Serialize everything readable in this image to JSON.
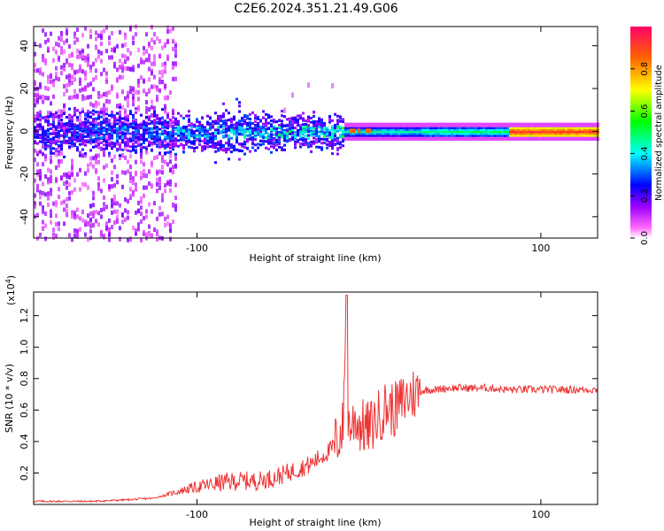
{
  "title": "C2E6.2024.351.21.49.G06",
  "chart_data": [
    {
      "type": "heatmap",
      "title": "",
      "xlabel": "Height of straight line (km)",
      "ylabel": "Frequency (Hz)",
      "xlim": [
        -195,
        133
      ],
      "ylim": [
        -50,
        49
      ],
      "xticks": [
        -100,
        100
      ],
      "yticks": [
        -40,
        -20,
        0,
        20,
        40
      ],
      "colorbar": {
        "label": "Normalized spectral amplitude",
        "ticks": [
          0.0,
          0.2,
          0.4,
          0.6,
          0.8
        ],
        "range": [
          0,
          1
        ],
        "colormap": [
          "#ffffff",
          "#ff00ff",
          "#8a00ff",
          "#0000ff",
          "#00ffff",
          "#00ff00",
          "#ffff00",
          "#ff8000",
          "#ff0000"
        ]
      },
      "features": {
        "main_line_frequency_hz": 0,
        "noisy_region_end_km": -15,
        "high_amplitude_from_km": 80,
        "wide_scatter_until_km": -112
      }
    },
    {
      "type": "line",
      "title": "",
      "xlabel": "Height of straight line (km)",
      "ylabel": "SNR (10 * v/v)",
      "y_scale_label": "(x10^4)",
      "y_scale_base": "(x10",
      "y_scale_exp": "4",
      "y_scale_close": ")",
      "xlim": [
        -195,
        133
      ],
      "ylim": [
        0.0,
        1.35
      ],
      "xticks": [
        -100,
        100
      ],
      "yticks": [
        0.2,
        0.4,
        0.6,
        0.8,
        1.0,
        1.2
      ],
      "line_color": "#ee3333",
      "series": [
        {
          "x": [
            -195,
            -180,
            -160,
            -140,
            -125,
            -115,
            -105,
            -95,
            -85,
            -75,
            -65,
            -55,
            -45,
            -35,
            -28,
            -22,
            -18,
            -15,
            -13,
            -12,
            -10,
            -8,
            -5,
            0,
            5,
            10,
            15,
            20,
            25,
            30,
            35,
            40,
            45,
            50,
            60,
            70,
            80,
            90,
            100,
            110,
            120,
            133
          ],
          "values": [
            0.02,
            0.02,
            0.02,
            0.03,
            0.04,
            0.07,
            0.1,
            0.12,
            0.14,
            0.15,
            0.15,
            0.17,
            0.21,
            0.25,
            0.3,
            0.35,
            0.42,
            0.5,
            1.33,
            0.5,
            0.5,
            0.55,
            0.5,
            0.48,
            0.55,
            0.62,
            0.6,
            0.66,
            0.7,
            0.72,
            0.73,
            0.73,
            0.74,
            0.74,
            0.74,
            0.74,
            0.73,
            0.73,
            0.73,
            0.73,
            0.73,
            0.73
          ]
        }
      ]
    }
  ]
}
